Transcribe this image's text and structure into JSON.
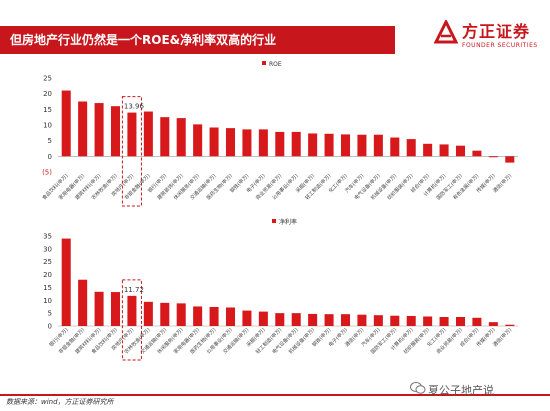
{
  "title": "但房地产行业仍然是一个ROE&净利率双高的行业",
  "logo": {
    "name_cn": "方正证券",
    "name_en": "FOUNDER SECURITIES"
  },
  "source": "数据来源：wind，方正证券研究所",
  "watermark": "夏公子地产说",
  "colors": {
    "accent": "#c8161d",
    "bar": "#d7191c",
    "axis": "#999999",
    "highlight_box": "#c8161d"
  },
  "chart_data": [
    {
      "type": "bar",
      "legend": "ROE",
      "legend_position": "top-left",
      "categories": [
        "食品饮料(申万)",
        "家用电器(申万)",
        "建筑材料(申万)",
        "农林牧渔(申万)",
        "房地产(申万)",
        "非银金融(申万)",
        "银行(申万)",
        "建筑装饰(申万)",
        "休闲服务(申万)",
        "交通运输(申万)",
        "医药生物(申万)",
        "钢铁(申万)",
        "电子(申万)",
        "商业贸易(申万)",
        "公用事业(申万)",
        "采掘(申万)",
        "轻工制造(申万)",
        "化工(申万)",
        "汽车(申万)",
        "电气设备(申万)",
        "机械设备(申万)",
        "纺织服装(申万)",
        "综合(申万)",
        "计算机(申万)",
        "国防军工(申万)",
        "有色金属(申万)",
        "传媒(申万)",
        "通信(申万)"
      ],
      "values": [
        21,
        17.5,
        17,
        16,
        13.96,
        14.3,
        12.5,
        12.2,
        10.2,
        9.2,
        9.0,
        8.6,
        8.6,
        7.8,
        7.8,
        7.3,
        7.2,
        7.0,
        6.9,
        6.9,
        6.0,
        5.5,
        4.0,
        3.8,
        3.4,
        1.8,
        -0.3,
        -2.0
      ],
      "highlight_index": 4,
      "highlight_label": "13.96",
      "yticks": [
        "25",
        "20",
        "15",
        "10",
        "5",
        "0",
        "(5)"
      ],
      "ylim": [
        -5,
        25
      ]
    },
    {
      "type": "bar",
      "legend": "净利率",
      "legend_position": "top-left",
      "categories": [
        "银行(申万)",
        "非银金融(申万)",
        "建筑材料(申万)",
        "食品饮料(申万)",
        "房地产(申万)",
        "农林牧渔(申万)",
        "交通运输(申万)",
        "休闲服务(申万)",
        "家用电器(申万)",
        "医药生物(申万)",
        "公用事业(申万)",
        "交通运输(申万)",
        "采掘(申万)",
        "轻工制造(申万)",
        "电气设备(申万)",
        "机械设备(申万)",
        "钢铁(申万)",
        "电子(申万)",
        "通信(申万)",
        "汽车(申万)",
        "国防军工(申万)",
        "计算机(申万)",
        "纺织服装(申万)",
        "化工(申万)",
        "商业贸易(申万)",
        "综合(申万)",
        "传媒(申万)",
        "通信(申万)"
      ],
      "values": [
        34,
        18,
        13.3,
        13.2,
        11.72,
        9.4,
        9.0,
        8.8,
        7.6,
        7.4,
        7.2,
        6.0,
        5.6,
        5.0,
        5.0,
        4.7,
        4.6,
        4.6,
        4.4,
        4.2,
        4.0,
        3.9,
        3.7,
        3.5,
        3.5,
        3.2,
        1.5,
        0.5
      ],
      "highlight_index": 4,
      "highlight_label": "11.72",
      "yticks": [
        "35",
        "30",
        "25",
        "20",
        "15",
        "10",
        "5",
        "0"
      ],
      "ylim": [
        0,
        35
      ]
    }
  ]
}
